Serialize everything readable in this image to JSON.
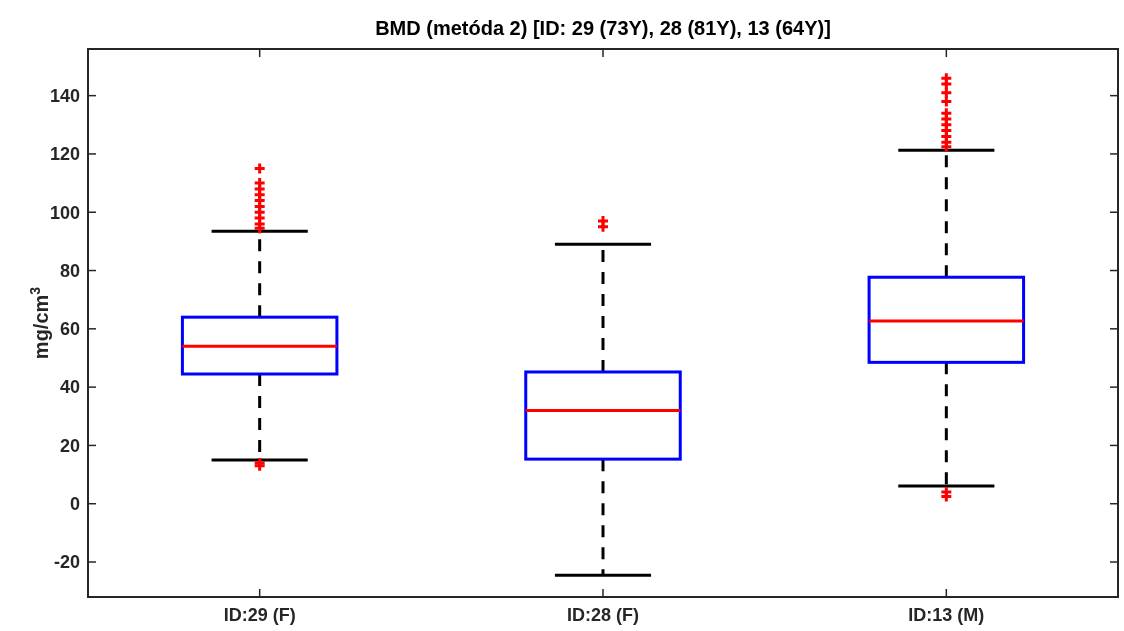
{
  "chart_data": {
    "type": "box",
    "title": "BMD (metóda 2) [ID: 29 (73Y), 28 (81Y), 13 (64Y)]",
    "ylabel": "mg/cm$^{3}$",
    "categories": [
      "ID:29 (F)",
      "ID:28 (F)",
      "ID:13 (M)"
    ],
    "color": "#0000ff",
    "marker": "cross",
    "grid": false,
    "ylim": [
      -32,
      156
    ],
    "yticks": [
      -20,
      0,
      20,
      40,
      60,
      80,
      100,
      120,
      140
    ],
    "boxes": [
      {
        "low": 15,
        "q1": 44.5,
        "median": 54,
        "q3": 64,
        "high": 93.5,
        "outliers": [
          94.5,
          96,
          98,
          100,
          102,
          104,
          106,
          108,
          110,
          115,
          14,
          13
        ]
      },
      {
        "low": -24.5,
        "q1": 15.3,
        "median": 32,
        "q3": 45.2,
        "high": 89,
        "outliers": [
          95,
          97
        ]
      },
      {
        "low": 6.1,
        "q1": 48.5,
        "median": 62.7,
        "q3": 77.7,
        "high": 121.3,
        "outliers": [
          122.5,
          124,
          126,
          128,
          130,
          132,
          134,
          138,
          141,
          144,
          146,
          4,
          2.5
        ]
      }
    ]
  }
}
